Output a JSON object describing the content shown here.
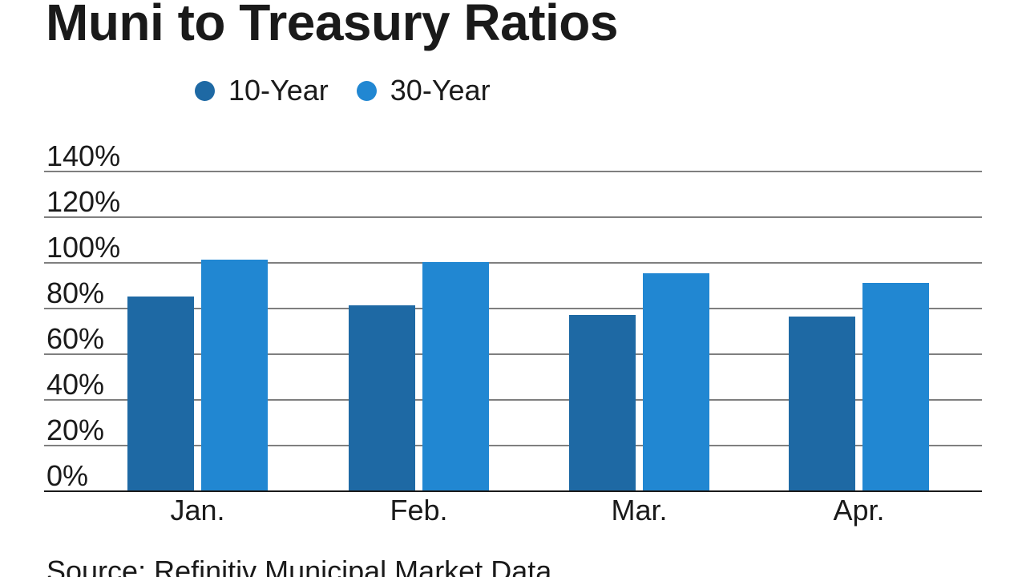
{
  "page": {
    "background": "#ffffff"
  },
  "chart_data": {
    "type": "bar",
    "title": "Muni to Treasury Ratios",
    "categories": [
      "Jan.",
      "Feb.",
      "Mar.",
      "Apr."
    ],
    "series": [
      {
        "name": "10-Year",
        "color": "#1e69a4",
        "values": [
          85,
          81,
          77,
          76
        ]
      },
      {
        "name": "30-Year",
        "color": "#2187d2",
        "values": [
          101,
          100,
          95,
          91
        ]
      }
    ],
    "unit": "percent",
    "ylim": [
      0,
      140
    ],
    "y_ticks": [
      {
        "label": "0%",
        "value": 0
      },
      {
        "label": "20%",
        "value": 20
      },
      {
        "label": "40%",
        "value": 40
      },
      {
        "label": "60%",
        "value": 60
      },
      {
        "label": "80%",
        "value": 80
      },
      {
        "label": "100%",
        "value": 100
      },
      {
        "label": "120%",
        "value": 120
      },
      {
        "label": "140%",
        "value": 140
      }
    ],
    "grid": "horizontal",
    "legend_position": "top-left",
    "xlabel": "",
    "ylabel": ""
  },
  "colors": {
    "grid_line": "#7f7f7f",
    "axis_line": "#1a1a1a",
    "text": "#1a1a1a"
  },
  "footer": {
    "source": "Source: Refinitiv Municipal Market Data"
  }
}
